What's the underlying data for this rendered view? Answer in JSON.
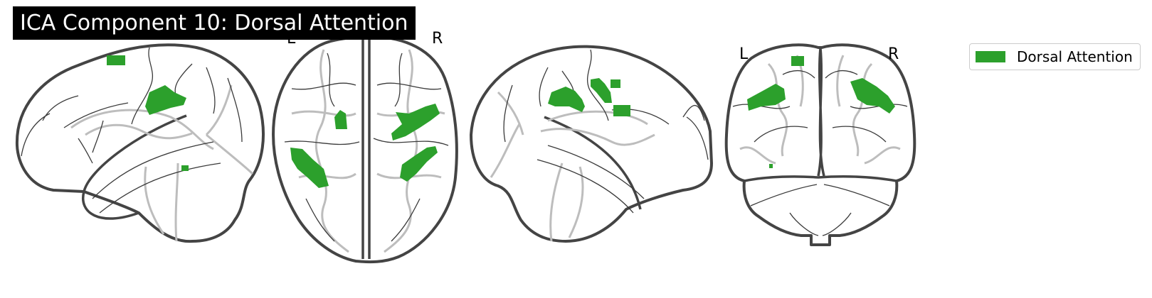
{
  "title": "ICA Component 10: Dorsal Attention",
  "legend": {
    "label": "Dorsal Attention",
    "color": "#2ca02c"
  },
  "views": {
    "axial": {
      "left_label": "L",
      "right_label": "R"
    },
    "coronal": {
      "left_label": "L",
      "right_label": "R"
    }
  },
  "colors": {
    "outline": "#444444",
    "sulcus": "#bdbdbd",
    "activation": "#2ca02c",
    "title_bg": "#000000"
  }
}
